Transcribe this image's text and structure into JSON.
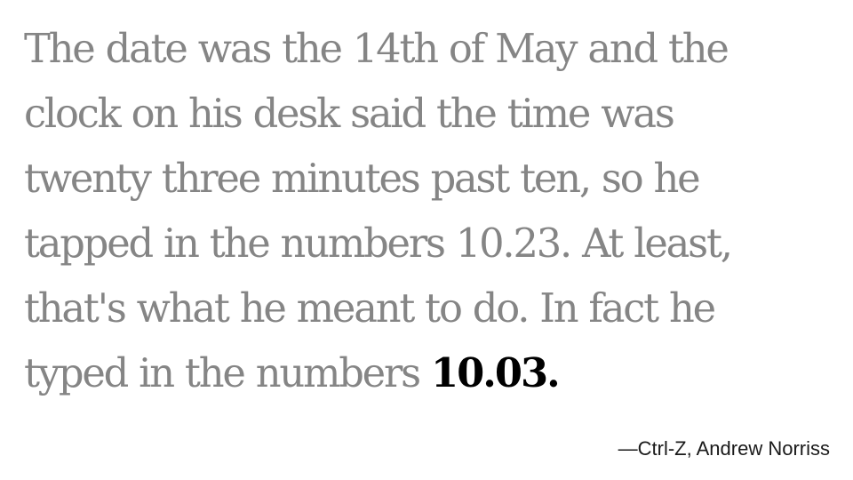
{
  "quote": {
    "lines": [
      "The date was the 14th of May and the",
      "clock on his desk said the time was",
      "twenty three minutes past ten, so he",
      "tapped in the numbers 10.23. At least,",
      "that's what he meant to do. In fact he",
      "typed in the numbers "
    ],
    "highlight": "10.03."
  },
  "attribution": "—Ctrl-Z, Andrew Norriss",
  "colors": {
    "background": "#ffffff",
    "quote_text": "#858585",
    "highlight": "#000000",
    "attribution": "#1a1a1a"
  }
}
